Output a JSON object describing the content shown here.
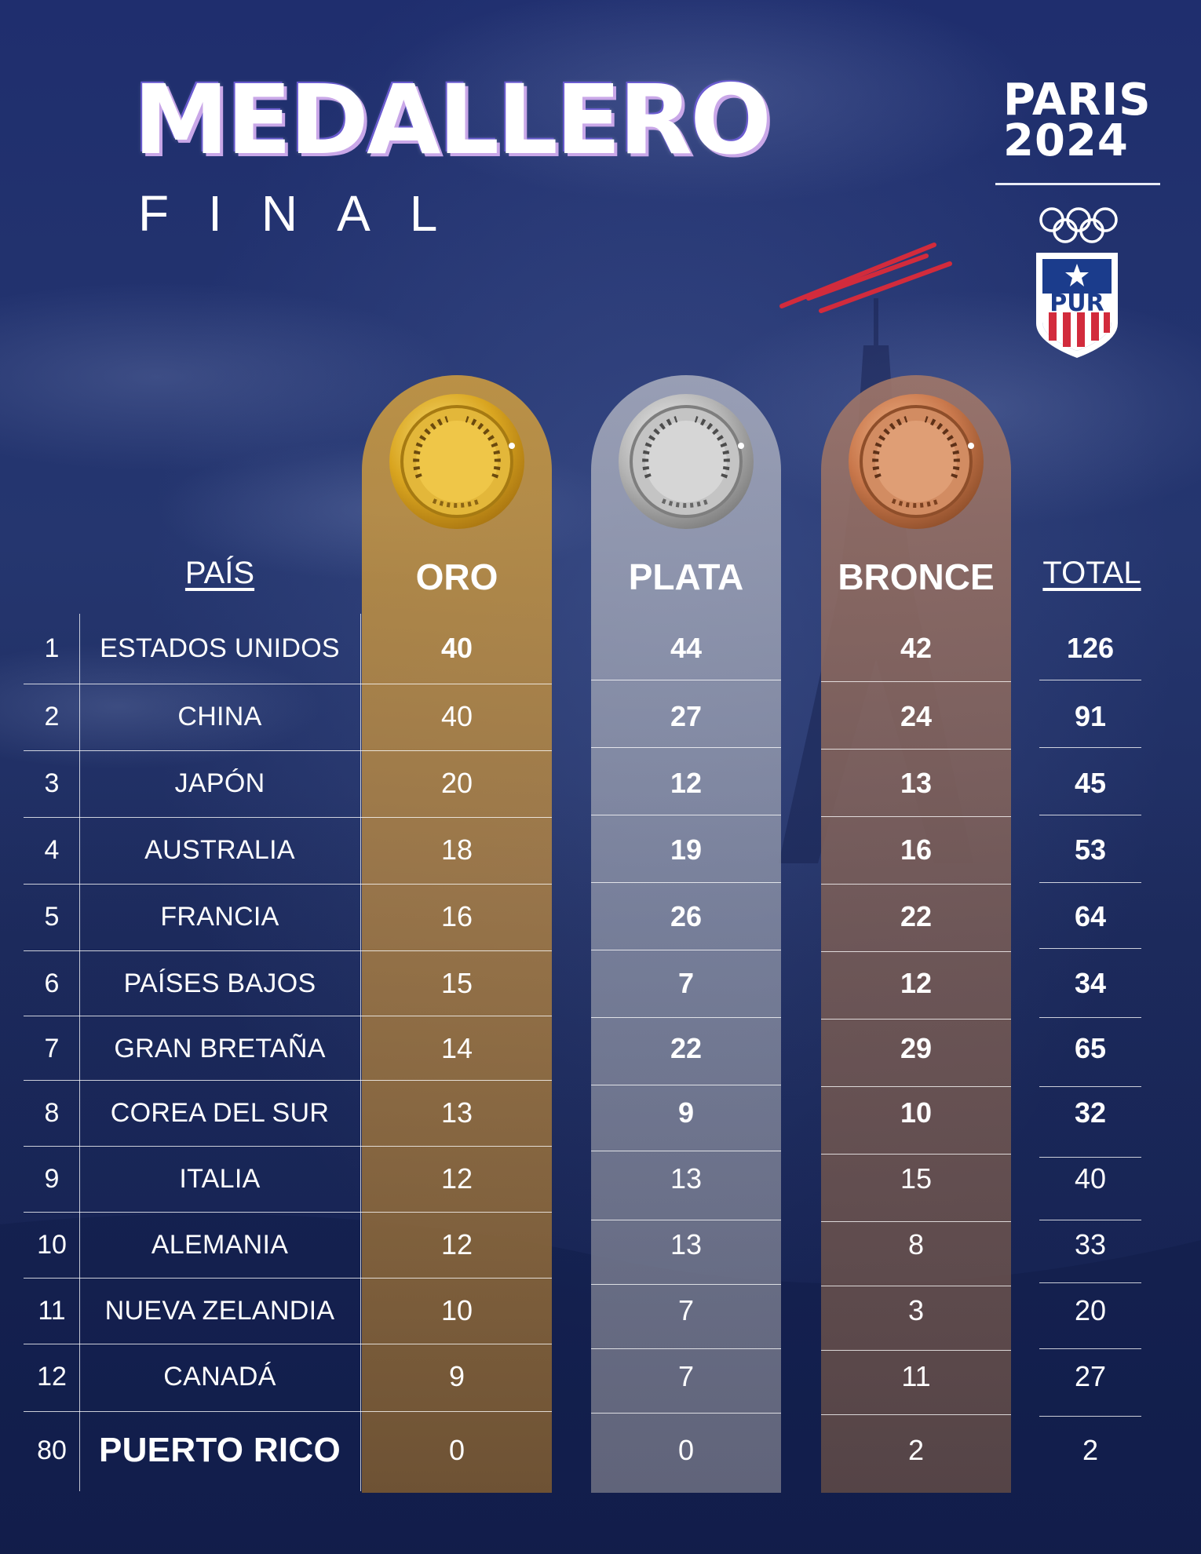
{
  "title": "MEDALLERO",
  "subtitle": "FINAL",
  "event": {
    "line1": "PARIS",
    "line2": "2024"
  },
  "shield_label": "PUR",
  "headers": {
    "pais": "PAÍS",
    "oro": "ORO",
    "plata": "PLATA",
    "bronce": "BRONCE",
    "total": "TOTAL"
  },
  "colors": {
    "gold": "#c6984a",
    "silver": "#aaaebe",
    "bronze": "#a07668",
    "background": "#1f2e6e",
    "accent_red": "#d22b3c"
  },
  "rows": [
    {
      "rank": "1",
      "country": "ESTADOS UNIDOS",
      "oro": "40",
      "plata": "44",
      "bronce": "42",
      "total": "126"
    },
    {
      "rank": "2",
      "country": "CHINA",
      "oro": "40",
      "plata": "27",
      "bronce": "24",
      "total": "91"
    },
    {
      "rank": "3",
      "country": "JAPÓN",
      "oro": "20",
      "plata": "12",
      "bronce": "13",
      "total": "45"
    },
    {
      "rank": "4",
      "country": "AUSTRALIA",
      "oro": "18",
      "plata": "19",
      "bronce": "16",
      "total": "53"
    },
    {
      "rank": "5",
      "country": "FRANCIA",
      "oro": "16",
      "plata": "26",
      "bronce": "22",
      "total": "64"
    },
    {
      "rank": "6",
      "country": "PAÍSES BAJOS",
      "oro": "15",
      "plata": "7",
      "bronce": "12",
      "total": "34"
    },
    {
      "rank": "7",
      "country": "GRAN BRETAÑA",
      "oro": "14",
      "plata": "22",
      "bronce": "29",
      "total": "65"
    },
    {
      "rank": "8",
      "country": "COREA DEL SUR",
      "oro": "13",
      "plata": "9",
      "bronce": "10",
      "total": "32"
    },
    {
      "rank": "9",
      "country": "ITALIA",
      "oro": "12",
      "plata": "13",
      "bronce": "15",
      "total": "40"
    },
    {
      "rank": "10",
      "country": "ALEMANIA",
      "oro": "12",
      "plata": "13",
      "bronce": "8",
      "total": "33"
    },
    {
      "rank": "11",
      "country": "NUEVA ZELANDIA",
      "oro": "10",
      "plata": "7",
      "bronce": "3",
      "total": "20"
    },
    {
      "rank": "12",
      "country": "CANADÁ",
      "oro": "9",
      "plata": "7",
      "bronce": "11",
      "total": "27"
    },
    {
      "rank": "80",
      "country": "PUERTO RICO",
      "oro": "0",
      "plata": "0",
      "bronce": "2",
      "total": "2"
    }
  ]
}
